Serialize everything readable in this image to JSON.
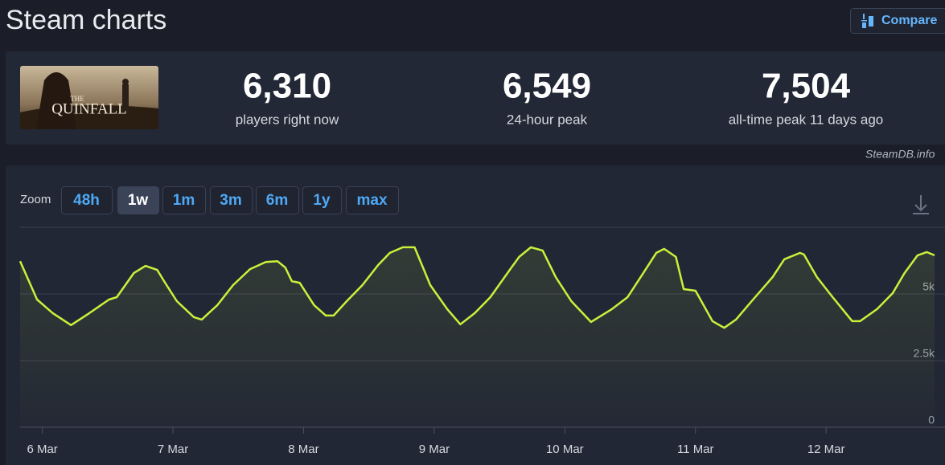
{
  "header": {
    "title": "Steam charts",
    "compare": "Compare"
  },
  "game": {
    "image_text": [
      "THE",
      "QUINFALL"
    ]
  },
  "stats": [
    {
      "value": "6,310",
      "label": "players right now"
    },
    {
      "value": "6,549",
      "label": "24-hour peak"
    },
    {
      "value": "7,504",
      "label": "all-time peak 11 days ago"
    }
  ],
  "source": "SteamDB.info",
  "zoom": {
    "label": "Zoom",
    "options": [
      "48h",
      "1w",
      "1m",
      "3m",
      "6m",
      "1y",
      "max"
    ],
    "active": "1w"
  },
  "chart_data": {
    "type": "line",
    "x": [
      5.83,
      5.96,
      6.08,
      6.22,
      6.36,
      6.51,
      6.57,
      6.7,
      6.79,
      6.88,
      6.94,
      7.03,
      7.16,
      7.22,
      7.34,
      7.46,
      7.59,
      7.71,
      7.8,
      7.86,
      7.91,
      7.97,
      8.08,
      8.17,
      8.23,
      8.33,
      8.45,
      8.57,
      8.66,
      8.76,
      8.85,
      8.97,
      9.1,
      9.2,
      9.31,
      9.43,
      9.56,
      9.65,
      9.74,
      9.83,
      9.93,
      10.05,
      10.2,
      10.36,
      10.48,
      10.6,
      10.7,
      10.76,
      10.85,
      10.91,
      11.0,
      11.13,
      11.22,
      11.31,
      11.43,
      11.59,
      11.68,
      11.8,
      11.83,
      11.93,
      12.05,
      12.2,
      12.26,
      12.39,
      12.51,
      12.6,
      12.7,
      12.77,
      12.83
    ],
    "series": [
      {
        "name": "Players",
        "color": "#c8f23a",
        "values": [
          6230,
          4790,
          4280,
          3830,
          4280,
          4790,
          4880,
          5780,
          6050,
          5900,
          5420,
          4730,
          4130,
          4040,
          4580,
          5330,
          5930,
          6200,
          6230,
          5990,
          5480,
          5420,
          4580,
          4190,
          4190,
          4730,
          5330,
          6080,
          6540,
          6750,
          6750,
          5330,
          4430,
          3860,
          4280,
          4880,
          5780,
          6390,
          6750,
          6630,
          5630,
          4730,
          3950,
          4430,
          4880,
          5780,
          6540,
          6690,
          6390,
          5180,
          5120,
          3980,
          3730,
          4040,
          4730,
          5630,
          6300,
          6540,
          6480,
          5630,
          4880,
          3980,
          3980,
          4430,
          5030,
          5780,
          6450,
          6570,
          6450
        ]
      }
    ],
    "xlim": [
      5.83,
      12.83
    ],
    "xticks": [
      {
        "value": 6,
        "label": "6 Mar"
      },
      {
        "value": 7,
        "label": "7 Mar"
      },
      {
        "value": 8,
        "label": "8 Mar"
      },
      {
        "value": 9,
        "label": "9 Mar"
      },
      {
        "value": 10,
        "label": "10 Mar"
      },
      {
        "value": 11,
        "label": "11 Mar"
      },
      {
        "value": 12,
        "label": "12 Mar"
      }
    ],
    "ylim": [
      0,
      7500
    ],
    "yticks": [
      0,
      {
        "value": 2500,
        "label": "2.5k"
      },
      {
        "value": 5000,
        "label": "5k"
      }
    ],
    "grid": true
  }
}
